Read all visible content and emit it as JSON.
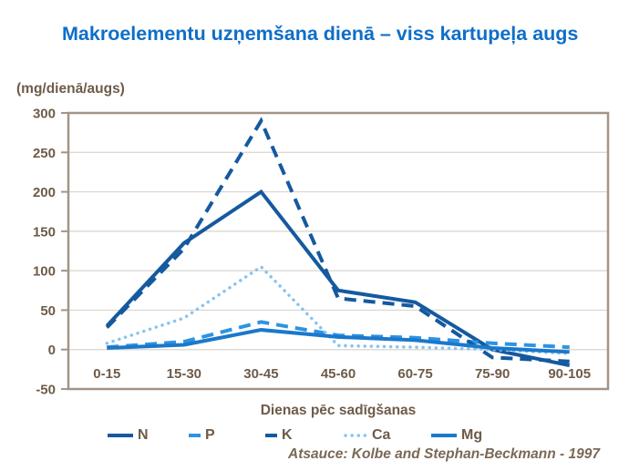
{
  "source": "Atsauce: Kolbe and Stephan-Beckmann - 1997",
  "colors": {
    "title_blue": "#0E6EC8",
    "label_brown": "#6E5B49",
    "source_brown": "#7A6857",
    "axis_line": "#A39486",
    "gridline": "#D9D5CE",
    "background": "#FFFFFF"
  },
  "chart_data": {
    "type": "line",
    "title": "Makroelementu uzņemšana dienā – viss kartupeļa augs",
    "unit_label": "(mg/dienā/augs)",
    "xlabel": "Dienas pēc sadīgšanas",
    "ylabel": "",
    "categories": [
      "0-15",
      "15-30",
      "30-45",
      "45-60",
      "60-75",
      "75-90",
      "90-105"
    ],
    "ylim": [
      -50,
      300
    ],
    "ytick_step": 50,
    "yticks": [
      300,
      250,
      200,
      150,
      100,
      50,
      0,
      -50
    ],
    "grid": true,
    "legend_position": "bottom",
    "series": [
      {
        "name": "N",
        "style": "solid",
        "color": "#15599F",
        "values": [
          30,
          135,
          200,
          75,
          60,
          0,
          -20
        ]
      },
      {
        "name": "P",
        "style": "dashed",
        "color": "#2E93E2",
        "values": [
          3,
          10,
          35,
          18,
          15,
          8,
          3
        ]
      },
      {
        "name": "K",
        "style": "dashed",
        "color": "#15599F",
        "values": [
          28,
          128,
          290,
          65,
          55,
          -10,
          -15
        ]
      },
      {
        "name": "Ca",
        "style": "dotted",
        "color": "#85C4F0",
        "values": [
          8,
          40,
          105,
          5,
          3,
          0,
          -5
        ]
      },
      {
        "name": "Mg",
        "style": "solid",
        "color": "#1B78CB",
        "values": [
          2,
          6,
          25,
          16,
          12,
          2,
          -3
        ]
      }
    ]
  }
}
